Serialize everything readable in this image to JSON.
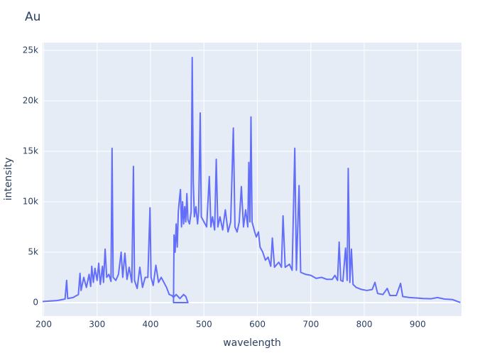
{
  "chart_data": {
    "type": "line",
    "title": "Au",
    "x_label": "wavelength",
    "y_label": "intensity",
    "series": [
      {
        "color": "#636efa",
        "x": [
          198,
          210,
          225,
          240,
          243,
          245,
          255,
          265,
          268,
          270,
          275,
          280,
          285,
          288,
          290,
          293,
          296,
          300,
          303,
          306,
          310,
          312,
          315,
          318,
          322,
          326,
          328,
          330,
          335,
          340,
          345,
          348,
          352,
          356,
          360,
          365,
          368,
          370,
          375,
          380,
          385,
          390,
          395,
          399,
          401,
          405,
          410,
          415,
          420,
          425,
          430,
          435,
          440,
          443,
          448,
          455,
          462,
          466,
          470,
          443,
          444,
          446,
          448,
          450,
          452,
          454,
          456,
          458,
          460,
          462,
          464,
          466,
          468,
          470,
          473,
          476,
          478,
          480,
          482,
          485,
          488,
          490,
          493,
          495,
          500,
          505,
          510,
          513,
          516,
          520,
          523,
          526,
          530,
          535,
          540,
          545,
          550,
          555,
          558,
          562,
          566,
          570,
          574,
          578,
          582,
          584,
          586,
          588,
          590,
          595,
          598,
          602,
          605,
          610,
          615,
          620,
          625,
          628,
          632,
          640,
          645,
          648,
          652,
          660,
          665,
          670,
          673,
          678,
          681,
          690,
          700,
          710,
          720,
          730,
          740,
          745,
          750,
          753,
          756,
          760,
          765,
          768,
          770,
          773,
          776,
          779,
          785,
          795,
          805,
          815,
          820,
          825,
          835,
          843,
          848,
          860,
          868,
          872,
          885,
          900,
          910,
          925,
          937,
          950,
          965,
          980
        ],
        "values": [
          100,
          150,
          200,
          350,
          2200,
          400,
          500,
          800,
          2900,
          1200,
          2500,
          1500,
          2800,
          1600,
          3600,
          2000,
          3400,
          2200,
          3900,
          1800,
          3600,
          2000,
          5300,
          2500,
          2800,
          2100,
          15300,
          2500,
          2200,
          2800,
          5000,
          2500,
          4900,
          2300,
          3500,
          2000,
          13500,
          2200,
          1400,
          3500,
          1500,
          2500,
          2500,
          9400,
          2500,
          1700,
          3700,
          2000,
          2500,
          2000,
          1500,
          800,
          700,
          500,
          800,
          400,
          800,
          600,
          0,
          0,
          6700,
          5000,
          7800,
          5500,
          9000,
          10200,
          11200,
          7500,
          10000,
          7800,
          9500,
          8000,
          10800,
          8200,
          7800,
          9000,
          24300,
          12000,
          8500,
          9500,
          7800,
          9000,
          18800,
          8500,
          8000,
          7500,
          12500,
          7500,
          8500,
          7200,
          14200,
          7500,
          8500,
          7200,
          9200,
          7000,
          8000,
          17300,
          7500,
          7000,
          8000,
          11500,
          7500,
          9200,
          7500,
          13900,
          8000,
          18400,
          8000,
          7000,
          6500,
          7000,
          5500,
          5000,
          4200,
          4500,
          3600,
          6400,
          3500,
          4000,
          3500,
          8600,
          3500,
          3800,
          3200,
          15300,
          3200,
          11600,
          3000,
          2800,
          2700,
          2400,
          2500,
          2300,
          2300,
          2700,
          2200,
          6000,
          2200,
          2100,
          5400,
          2200,
          13300,
          2000,
          5300,
          1800,
          1500,
          1300,
          1200,
          1300,
          2000,
          900,
          800,
          1400,
          700,
          700,
          1900,
          600,
          500,
          450,
          400,
          380,
          500,
          350,
          300,
          0
        ]
      }
    ],
    "xlim": [
      198,
      982
    ],
    "ylim": [
      -1340,
      25770
    ],
    "xticks": [
      200,
      300,
      400,
      500,
      600,
      700,
      800,
      900
    ],
    "yticks": [
      {
        "value": 0,
        "label": "0"
      },
      {
        "value": 5000,
        "label": "5k"
      },
      {
        "value": 10000,
        "label": "10k"
      },
      {
        "value": 15000,
        "label": "15k"
      },
      {
        "value": 20000,
        "label": "20k"
      },
      {
        "value": 25000,
        "label": "25k"
      }
    ],
    "grid": true
  }
}
